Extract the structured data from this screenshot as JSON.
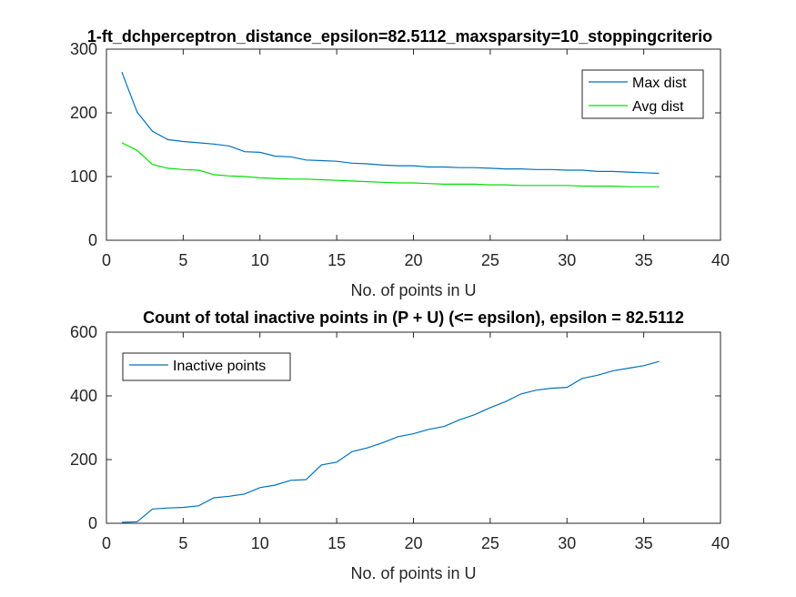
{
  "chart_data": [
    {
      "type": "line",
      "title": "1-ft_dchperceptron_distance_epsilon=82.5112_maxsparsity=10_stoppingcriterio",
      "xlabel": "No. of points in U",
      "ylabel": "",
      "xlim": [
        0,
        40
      ],
      "ylim": [
        0,
        300
      ],
      "xticks": [
        0,
        5,
        10,
        15,
        20,
        25,
        30,
        35,
        40
      ],
      "yticks": [
        0,
        100,
        200,
        300
      ],
      "grid": false,
      "legend_position": "top-right",
      "colors": {
        "Max dist": "#0072BD",
        "Avg dist": "#00E000"
      },
      "x": [
        1,
        2,
        3,
        4,
        5,
        6,
        7,
        8,
        9,
        10,
        11,
        12,
        13,
        14,
        15,
        16,
        17,
        18,
        19,
        20,
        21,
        22,
        23,
        24,
        25,
        26,
        27,
        28,
        29,
        30,
        31,
        32,
        33,
        34,
        35,
        36
      ],
      "series": [
        {
          "name": "Max dist",
          "values": [
            264,
            201,
            171,
            158,
            155,
            153,
            151,
            148,
            139,
            138,
            132,
            131,
            126,
            125,
            124,
            121,
            120,
            118,
            117,
            117,
            115,
            115,
            114,
            114,
            113,
            112,
            112,
            111,
            111,
            110,
            110,
            108,
            108,
            107,
            106,
            105
          ]
        },
        {
          "name": "Avg dist",
          "values": [
            153,
            141,
            119,
            113,
            111,
            110,
            103,
            101,
            100,
            98,
            97,
            96,
            96,
            95,
            94,
            93,
            92,
            91,
            90,
            90,
            89,
            88,
            88,
            88,
            87,
            87,
            86,
            86,
            86,
            86,
            85,
            85,
            85,
            84,
            84,
            84
          ]
        }
      ]
    },
    {
      "type": "line",
      "title": "Count of total inactive points in (P + U) (<= epsilon), epsilon = 82.5112",
      "xlabel": "No. of points in U",
      "ylabel": "",
      "xlim": [
        0,
        40
      ],
      "ylim": [
        0,
        600
      ],
      "xticks": [
        0,
        5,
        10,
        15,
        20,
        25,
        30,
        35,
        40
      ],
      "yticks": [
        0,
        200,
        400,
        600
      ],
      "grid": false,
      "legend_position": "top-left",
      "colors": {
        "Inactive points": "#0072BD"
      },
      "x": [
        1,
        2,
        3,
        4,
        5,
        6,
        7,
        8,
        9,
        10,
        11,
        12,
        13,
        14,
        15,
        16,
        17,
        18,
        19,
        20,
        21,
        22,
        23,
        24,
        25,
        26,
        27,
        28,
        29,
        30,
        31,
        32,
        33,
        34,
        35,
        36
      ],
      "series": [
        {
          "name": "Inactive points",
          "values": [
            3,
            5,
            45,
            48,
            50,
            55,
            80,
            85,
            92,
            112,
            120,
            135,
            137,
            183,
            192,
            225,
            237,
            253,
            272,
            281,
            295,
            304,
            325,
            341,
            363,
            382,
            406,
            418,
            424,
            427,
            455,
            465,
            479,
            487,
            495,
            508
          ]
        }
      ]
    }
  ]
}
